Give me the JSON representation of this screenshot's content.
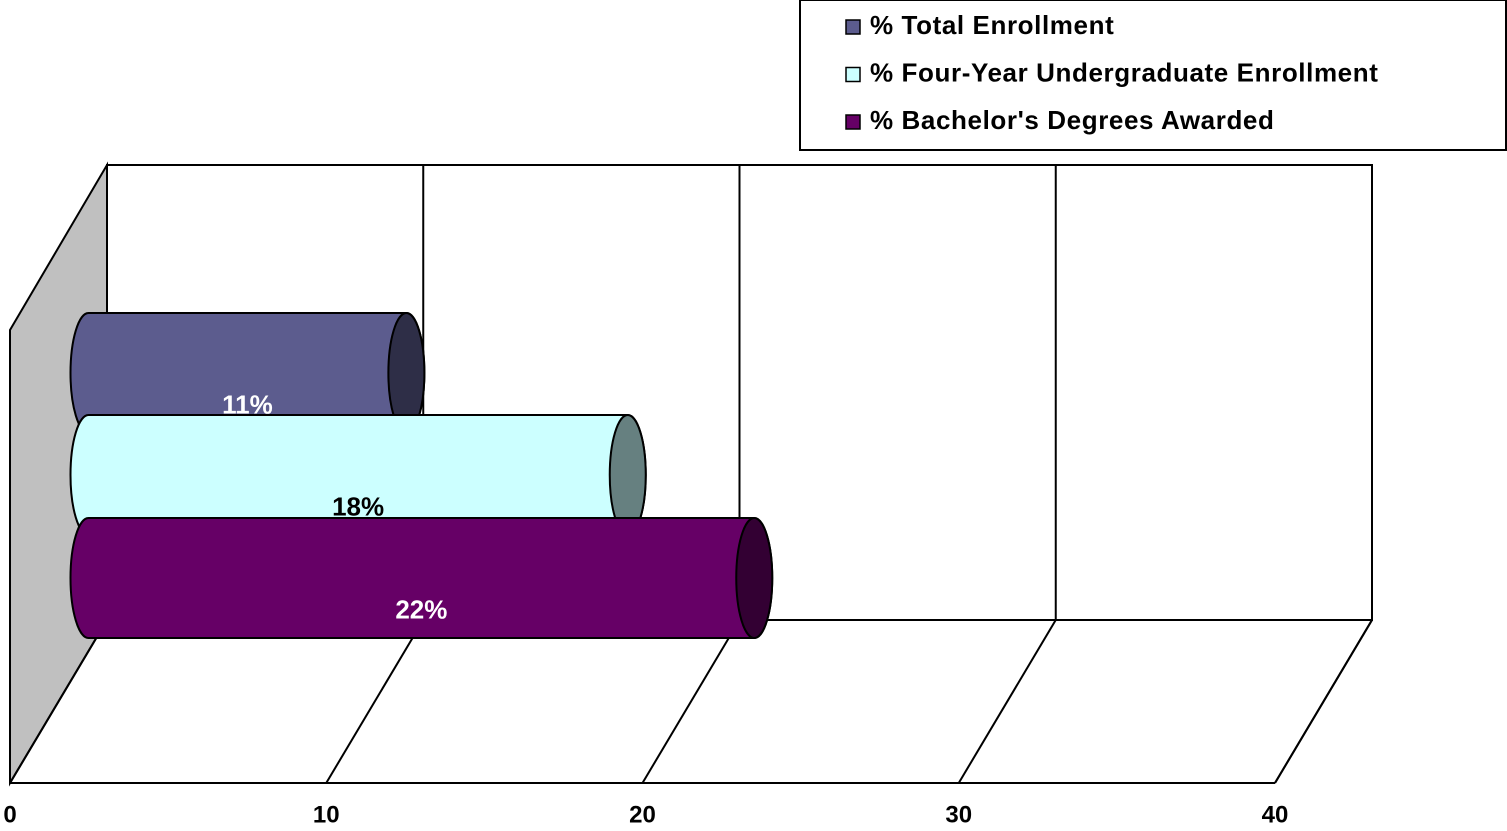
{
  "chart_data": {
    "type": "bar3d_horizontal",
    "categories": [
      null
    ],
    "series": [
      {
        "name": "% Total Enrollment",
        "color": "#5c5c8e",
        "values": [
          11
        ],
        "value_labels": [
          "11%"
        ]
      },
      {
        "name": "% Four-Year Undergraduate Enrollment",
        "color": "#ccffff",
        "values": [
          18
        ],
        "value_labels": [
          "18%"
        ]
      },
      {
        "name": "% Bachelor's Degrees Awarded",
        "color": "#660066",
        "values": [
          22
        ],
        "value_labels": [
          "22%"
        ]
      }
    ],
    "xlim": [
      0,
      40
    ],
    "xticks": [
      0,
      10,
      20,
      30,
      40
    ],
    "grid": true,
    "legend": "top-right"
  }
}
